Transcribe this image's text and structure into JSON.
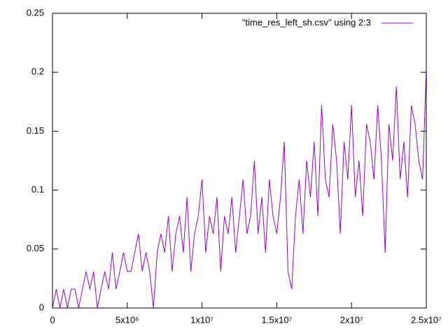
{
  "chart_data": {
    "type": "line",
    "series": [
      {
        "name": "\"time_res_left_sh.csv\" using 2:3",
        "color": "#9400d3",
        "values": [
          0,
          0.016,
          0,
          0.016,
          0,
          0.016,
          0.016,
          0,
          0.016,
          0.031,
          0.016,
          0.031,
          0,
          0.016,
          0.031,
          0.016,
          0.047,
          0.016,
          0.031,
          0.047,
          0.031,
          0.031,
          0.047,
          0.063,
          0.031,
          0.047,
          0.031,
          0,
          0.047,
          0.063,
          0.047,
          0.078,
          0.031,
          0.063,
          0.078,
          0.047,
          0.094,
          0.031,
          0.063,
          0.078,
          0.109,
          0.047,
          0.078,
          0.063,
          0.094,
          0.031,
          0.078,
          0.063,
          0.094,
          0.047,
          0.078,
          0.109,
          0.063,
          0.078,
          0.125,
          0.063,
          0.094,
          0.047,
          0.109,
          0.078,
          0.063,
          0.094,
          0.141,
          0.031,
          0.016,
          0.078,
          0.109,
          0.063,
          0.125,
          0.094,
          0.141,
          0.078,
          0.172,
          0.109,
          0.094,
          0.156,
          0.125,
          0.063,
          0.141,
          0.109,
          0.172,
          0.094,
          0.125,
          0.078,
          0.156,
          0.141,
          0.109,
          0.172,
          0.125,
          0.047,
          0.156,
          0.125,
          0.188,
          0.109,
          0.141,
          0.094,
          0.172,
          0.156,
          0.125,
          0.109,
          0.203
        ]
      }
    ],
    "x": [
      0,
      250000,
      500000,
      750000,
      1000000,
      1250000,
      1500000,
      1750000,
      2000000,
      2250000,
      2500000,
      2750000,
      3000000,
      3250000,
      3500000,
      3750000,
      4000000,
      4250000,
      4500000,
      4750000,
      5000000,
      5250000,
      5500000,
      5750000,
      6000000,
      6250000,
      6500000,
      6750000,
      7000000,
      7250000,
      7500000,
      7750000,
      8000000,
      8250000,
      8500000,
      8750000,
      9000000,
      9250000,
      9500000,
      9750000,
      10000000,
      10250000,
      10500000,
      10750000,
      11000000,
      11250000,
      11500000,
      11750000,
      12000000,
      12250000,
      12500000,
      12750000,
      13000000,
      13250000,
      13500000,
      13750000,
      14000000,
      14250000,
      14500000,
      14750000,
      15000000,
      15250000,
      15500000,
      15750000,
      16000000,
      16250000,
      16500000,
      16750000,
      17000000,
      17250000,
      17500000,
      17750000,
      18000000,
      18250000,
      18500000,
      18750000,
      19000000,
      19250000,
      19500000,
      19750000,
      20000000,
      20250000,
      20500000,
      20750000,
      21000000,
      21250000,
      21500000,
      21750000,
      22000000,
      22250000,
      22500000,
      22750000,
      23000000,
      23250000,
      23500000,
      23750000,
      24000000,
      24250000,
      24500000,
      24750000,
      25000000
    ],
    "xlim": [
      0,
      25000000
    ],
    "xticks": [
      0,
      {
        "value": 5000000,
        "label": "5x10⁶"
      },
      {
        "value": 10000000,
        "label": "1x10⁷"
      },
      {
        "value": 15000000,
        "label": "1.5x10⁷"
      },
      {
        "value": 20000000,
        "label": "2x10⁷"
      },
      {
        "value": 25000000,
        "label": "2.5x10⁷"
      }
    ],
    "ylim": [
      0,
      0.25
    ],
    "yticks": [
      0,
      0.05,
      0.1,
      0.15,
      0.2,
      0.25
    ],
    "legend": "top-right"
  }
}
